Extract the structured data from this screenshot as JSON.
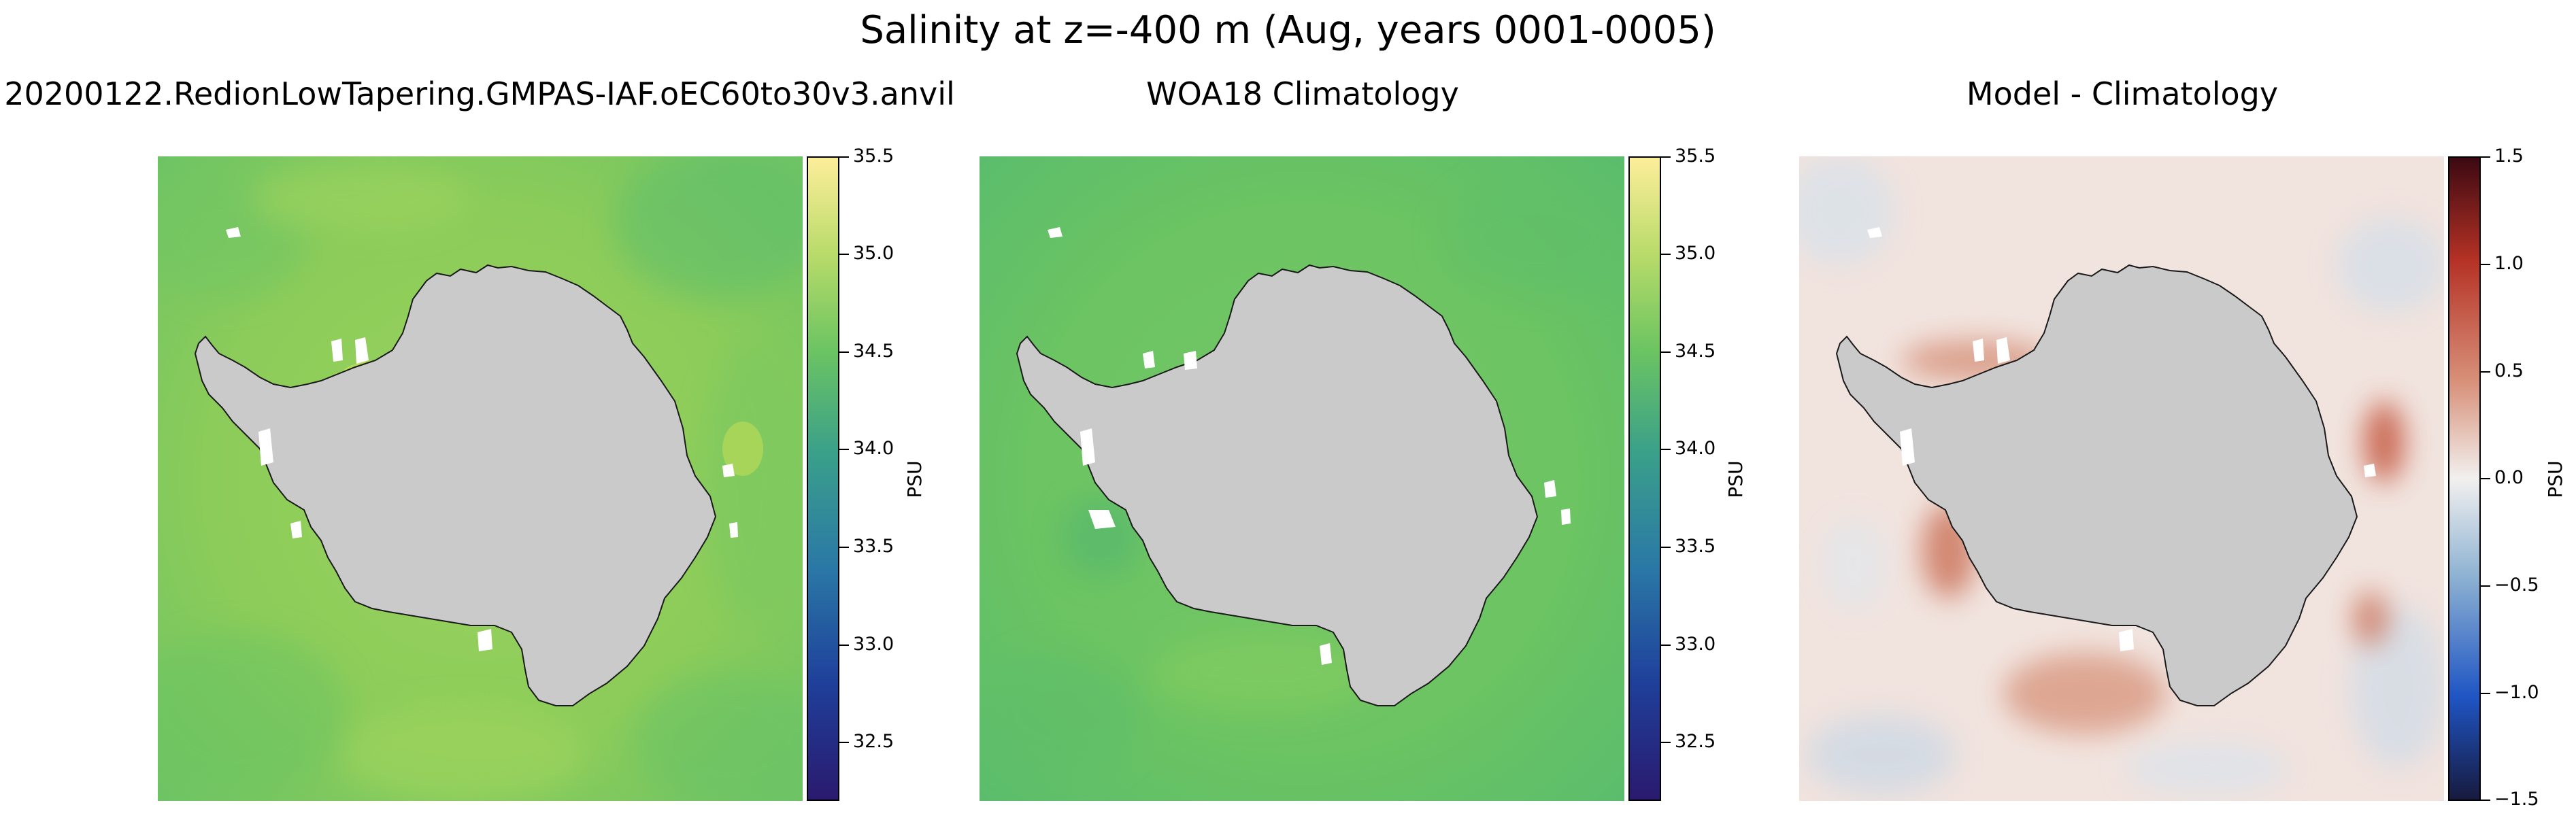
{
  "figure": {
    "suptitle": "Salinity at z=-400 m (Aug, years 0001-0005)"
  },
  "panels": [
    {
      "title": "20200122.RedionLowTapering.GMPAS-IAF.oEC60to30v3.anvil",
      "variable": "model",
      "colormap": "haline",
      "colorbar": {
        "label": "PSU",
        "range": [
          32.2,
          35.5
        ],
        "ticks": [
          "35.5",
          "35.0",
          "34.5",
          "34.0",
          "33.5",
          "33.0",
          "32.5"
        ],
        "tick_values": [
          35.5,
          35.0,
          34.5,
          34.0,
          33.5,
          33.0,
          32.5
        ]
      }
    },
    {
      "title": "WOA18 Climatology",
      "variable": "observations",
      "colormap": "haline",
      "colorbar": {
        "label": "PSU",
        "range": [
          32.2,
          35.5
        ],
        "ticks": [
          "35.5",
          "35.0",
          "34.5",
          "34.0",
          "33.5",
          "33.0",
          "32.5"
        ],
        "tick_values": [
          35.5,
          35.0,
          34.5,
          34.0,
          33.5,
          33.0,
          32.5
        ]
      }
    },
    {
      "title": "Model - Climatology",
      "variable": "difference",
      "colormap": "balance",
      "colorbar": {
        "label": "PSU",
        "range": [
          -1.5,
          1.5
        ],
        "ticks": [
          "1.5",
          "1.0",
          "0.5",
          "0.0",
          "−0.5",
          "−1.0",
          "−1.5"
        ],
        "tick_values": [
          1.5,
          1.0,
          0.5,
          0.0,
          -0.5,
          -1.0,
          -1.5
        ]
      }
    }
  ],
  "colors": {
    "land": "#cacaca",
    "coastline": "#1a1a1a",
    "model_field": "#8ccc5a",
    "obs_field": "#6cc462",
    "diff_field": "#f1e3de",
    "haline_stops": [
      "#2a1a6e",
      "#1f3f9a",
      "#2a78a6",
      "#3aa08a",
      "#6cc462",
      "#b9db6a",
      "#fdee9a"
    ],
    "balance_stops": [
      "#171a3e",
      "#1f55c4",
      "#8fb3d2",
      "#f2f0ef",
      "#d8917a",
      "#b53225",
      "#3c0912"
    ]
  }
}
